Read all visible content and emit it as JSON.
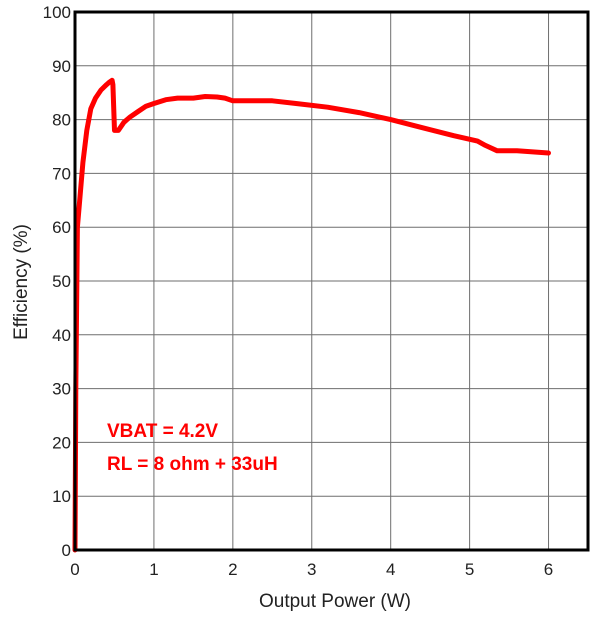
{
  "chart_data": {
    "type": "line",
    "xlabel": "Output Power (W)",
    "ylabel": "Efficiency (%)",
    "xlim": [
      0,
      6.5
    ],
    "ylim": [
      0,
      100
    ],
    "xticks": [
      "0",
      "1",
      "2",
      "3",
      "4",
      "5",
      "6"
    ],
    "yticks": [
      "0",
      "10",
      "20",
      "30",
      "40",
      "50",
      "60",
      "70",
      "80",
      "90",
      "100"
    ],
    "grid": true,
    "annotations": [
      "VBAT = 4.2V",
      "RL = 8 ohm + 33uH"
    ],
    "series": [
      {
        "color": "#ff0000",
        "x": [
          0,
          0.01,
          0.03,
          0.06,
          0.1,
          0.15,
          0.2,
          0.26,
          0.33,
          0.4,
          0.44,
          0.47,
          0.48,
          0.5,
          0.55,
          0.62,
          0.7,
          0.8,
          0.9,
          1.0,
          1.15,
          1.3,
          1.5,
          1.65,
          1.8,
          1.9,
          2.0,
          2.2,
          2.5,
          2.8,
          3.2,
          3.6,
          4.0,
          4.4,
          4.8,
          5.1,
          5.2,
          5.35,
          5.6,
          5.8,
          6.0
        ],
        "y": [
          0,
          30,
          60,
          65,
          72,
          78,
          82,
          84,
          85.5,
          86.5,
          87,
          87.3,
          86.5,
          78,
          78,
          79.5,
          80.5,
          81.5,
          82.5,
          83,
          83.7,
          84,
          84,
          84.3,
          84.2,
          84,
          83.5,
          83.5,
          83.5,
          83,
          82.3,
          81.3,
          80,
          78.5,
          77,
          76,
          75.2,
          74.2,
          74.2,
          74,
          73.8
        ]
      }
    ]
  }
}
